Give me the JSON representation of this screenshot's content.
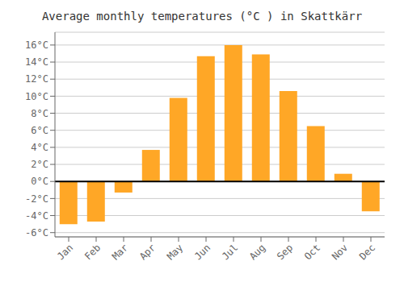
{
  "chart_data": {
    "type": "bar",
    "title": "Average monthly temperatures (°C ) in Skattkärr",
    "categories": [
      "Jan",
      "Feb",
      "Mar",
      "Apr",
      "May",
      "Jun",
      "Jul",
      "Aug",
      "Sep",
      "Oct",
      "Nov",
      "Dec"
    ],
    "values": [
      -5.0,
      -4.7,
      -1.3,
      3.7,
      9.8,
      14.7,
      16.0,
      14.9,
      10.6,
      6.5,
      0.9,
      -3.5
    ],
    "color": "#FFA726",
    "ylim": [
      -6.5,
      17.5
    ],
    "yticks": [
      {
        "value": -6,
        "label": "-6°C"
      },
      {
        "value": -4,
        "label": "-4°C"
      },
      {
        "value": -2,
        "label": "-2°C"
      },
      {
        "value": 0,
        "label": "0°C"
      },
      {
        "value": 2,
        "label": "2°C"
      },
      {
        "value": 4,
        "label": "4°C"
      },
      {
        "value": 6,
        "label": "6°C"
      },
      {
        "value": 8,
        "label": "8°C"
      },
      {
        "value": 10,
        "label": "10°C"
      },
      {
        "value": 12,
        "label": "12°C"
      },
      {
        "value": 14,
        "label": "14°C"
      },
      {
        "value": 16,
        "label": "16°C"
      }
    ],
    "grid": true
  }
}
